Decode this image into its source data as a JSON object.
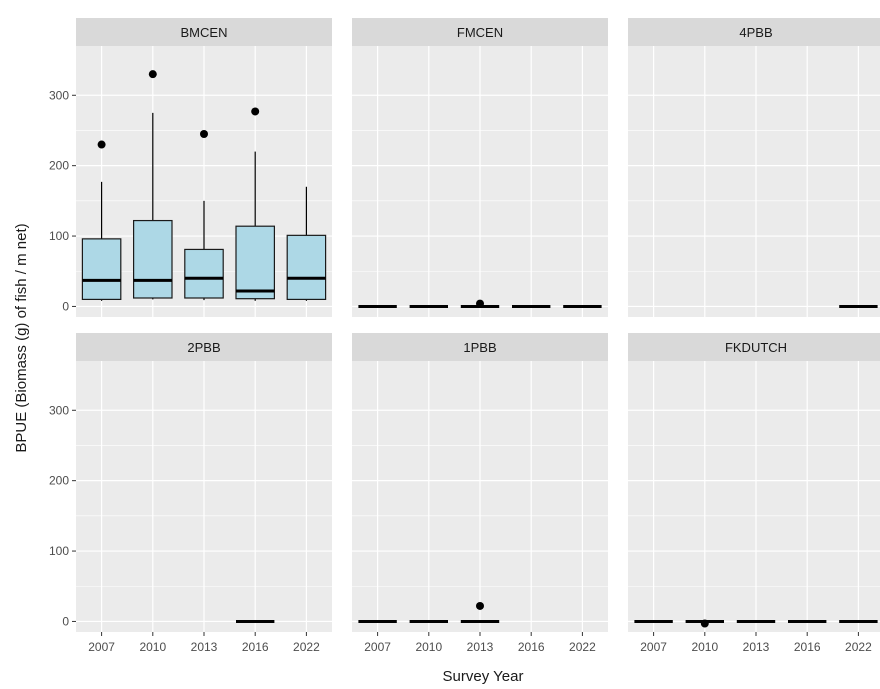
{
  "chart_data": {
    "type": "boxplot",
    "facets_layout": "2 rows x 3 columns, shared axes",
    "xlabel": "Survey Year",
    "ylabel": "BPUE (Biomass (g) of fish / m net)",
    "x_categories": [
      "2007",
      "2010",
      "2013",
      "2016",
      "2022"
    ],
    "y_ticks": [
      0,
      100,
      200,
      300
    ],
    "ylim": [
      -15,
      370
    ],
    "grid": true,
    "box_fill": "#add8e6",
    "panel_background": "#ebebeb",
    "strip_background": "#d9d9d9",
    "facets": [
      {
        "name": "BMCEN",
        "boxes": [
          {
            "year": "2007",
            "min": 8,
            "q1": 10,
            "median": 37,
            "q3": 96,
            "max": 177,
            "outliers": [
              230
            ]
          },
          {
            "year": "2010",
            "min": 10,
            "q1": 12,
            "median": 37,
            "q3": 122,
            "max": 275,
            "outliers": [
              330
            ]
          },
          {
            "year": "2013",
            "min": 9,
            "q1": 12,
            "median": 40,
            "q3": 81,
            "max": 150,
            "outliers": [
              245
            ]
          },
          {
            "year": "2016",
            "min": 8,
            "q1": 11,
            "median": 22,
            "q3": 114,
            "max": 220,
            "outliers": [
              277
            ]
          },
          {
            "year": "2022",
            "min": 8,
            "q1": 10,
            "median": 40,
            "q3": 101,
            "max": 170,
            "outliers": []
          }
        ]
      },
      {
        "name": "FMCEN",
        "boxes": [
          {
            "year": "2007",
            "min": 0,
            "q1": 0,
            "median": 0,
            "q3": 0,
            "max": 0,
            "outliers": []
          },
          {
            "year": "2010",
            "min": 0,
            "q1": 0,
            "median": 0,
            "q3": 0,
            "max": 0,
            "outliers": []
          },
          {
            "year": "2013",
            "min": 0,
            "q1": 0,
            "median": 0,
            "q3": 0,
            "max": 0,
            "outliers": [
              4
            ]
          },
          {
            "year": "2016",
            "min": 0,
            "q1": 0,
            "median": 0,
            "q3": 0,
            "max": 0,
            "outliers": []
          },
          {
            "year": "2022",
            "min": 0,
            "q1": 0,
            "median": 0,
            "q3": 0,
            "max": 0,
            "outliers": []
          }
        ]
      },
      {
        "name": "4PBB",
        "boxes": [
          {
            "year": "2022",
            "min": 0,
            "q1": 0,
            "median": 0,
            "q3": 0,
            "max": 0,
            "outliers": []
          }
        ]
      },
      {
        "name": "2PBB",
        "boxes": [
          {
            "year": "2016",
            "min": 0,
            "q1": 0,
            "median": 0,
            "q3": 0,
            "max": 0,
            "outliers": []
          }
        ]
      },
      {
        "name": "1PBB",
        "boxes": [
          {
            "year": "2007",
            "min": 0,
            "q1": 0,
            "median": 0,
            "q3": 0,
            "max": 0,
            "outliers": []
          },
          {
            "year": "2010",
            "min": 0,
            "q1": 0,
            "median": 0,
            "q3": 0,
            "max": 0,
            "outliers": []
          },
          {
            "year": "2013",
            "min": 0,
            "q1": 0,
            "median": 0,
            "q3": 0,
            "max": 0,
            "outliers": [
              22
            ]
          }
        ]
      },
      {
        "name": "FKDUTCH",
        "boxes": [
          {
            "year": "2007",
            "min": 0,
            "q1": 0,
            "median": 0,
            "q3": 0,
            "max": 0,
            "outliers": []
          },
          {
            "year": "2010",
            "min": 0,
            "q1": 0,
            "median": 0,
            "q3": 0,
            "max": 0,
            "outliers": [
              -3
            ]
          },
          {
            "year": "2013",
            "min": 0,
            "q1": 0,
            "median": 0,
            "q3": 0,
            "max": 0,
            "outliers": []
          },
          {
            "year": "2016",
            "min": 0,
            "q1": 0,
            "median": 0,
            "q3": 0,
            "max": 0,
            "outliers": []
          },
          {
            "year": "2022",
            "min": 0,
            "q1": 0,
            "median": 0,
            "q3": 0,
            "max": 0,
            "outliers": []
          }
        ]
      }
    ]
  }
}
